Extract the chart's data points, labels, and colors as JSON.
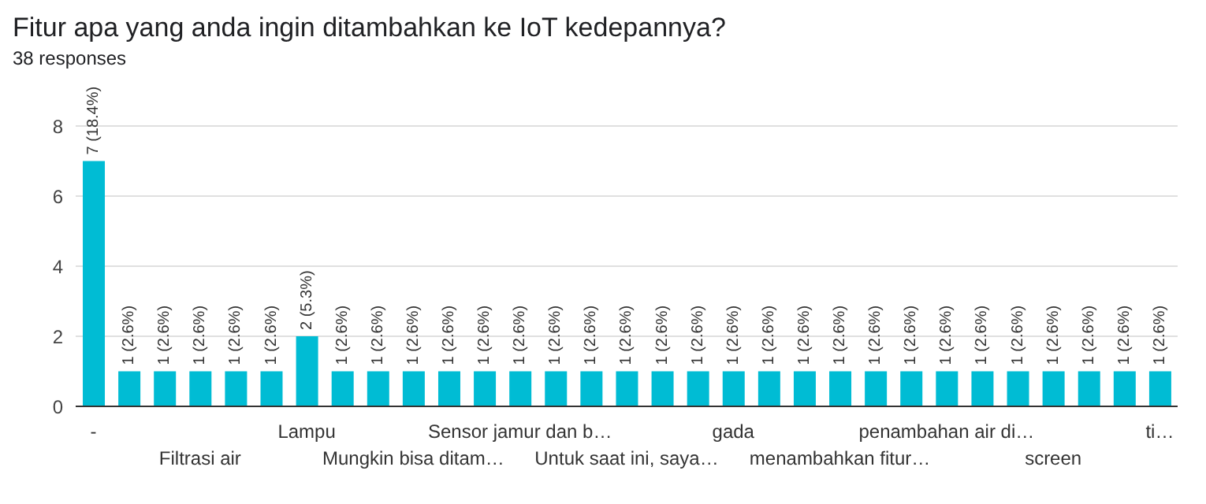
{
  "chart_data": {
    "type": "bar",
    "title": "Fitur apa yang anda ingin ditambahkan ke IoT kedepannya?",
    "subtitle": "38 responses",
    "categories": [
      "-",
      null,
      null,
      "Filtrasi air",
      null,
      null,
      "Lampu",
      null,
      null,
      "Mungkin bisa ditam…",
      null,
      null,
      "Sensor jamur dan b…",
      null,
      null,
      "Untuk saat ini, saya…",
      null,
      null,
      "gada",
      null,
      null,
      "menambahkan fitur…",
      null,
      null,
      "penambahan air di…",
      null,
      null,
      "screen",
      null,
      null,
      "ti…"
    ],
    "values": [
      7,
      1,
      1,
      1,
      1,
      1,
      2,
      1,
      1,
      1,
      1,
      1,
      1,
      1,
      1,
      1,
      1,
      1,
      1,
      1,
      1,
      1,
      1,
      1,
      1,
      1,
      1,
      1,
      1,
      1,
      1
    ],
    "value_labels": [
      "7 (18.4%)",
      "1 (2.6%)",
      "1 (2.6%)",
      "1 (2.6%)",
      "1 (2.6%)",
      "1 (2.6%)",
      "2 (5.3%)",
      "1 (2.6%)",
      "1 (2.6%)",
      "1 (2.6%)",
      "1 (2.6%)",
      "1 (2.6%)",
      "1 (2.6%)",
      "1 (2.6%)",
      "1 (2.6%)",
      "1 (2.6%)",
      "1 (2.6%)",
      "1 (2.6%)",
      "1 (2.6%)",
      "1 (2.6%)",
      "1 (2.6%)",
      "1 (2.6%)",
      "1 (2.6%)",
      "1 (2.6%)",
      "1 (2.6%)",
      "1 (2.6%)",
      "1 (2.6%)",
      "1 (2.6%)",
      "1 (2.6%)",
      "1 (2.6%)",
      "1 (2.6%)"
    ],
    "color": "#00bcd4",
    "ylim": [
      0,
      8
    ],
    "yticks": [
      0,
      2,
      4,
      6,
      8
    ],
    "grid": "y",
    "legend": false
  }
}
